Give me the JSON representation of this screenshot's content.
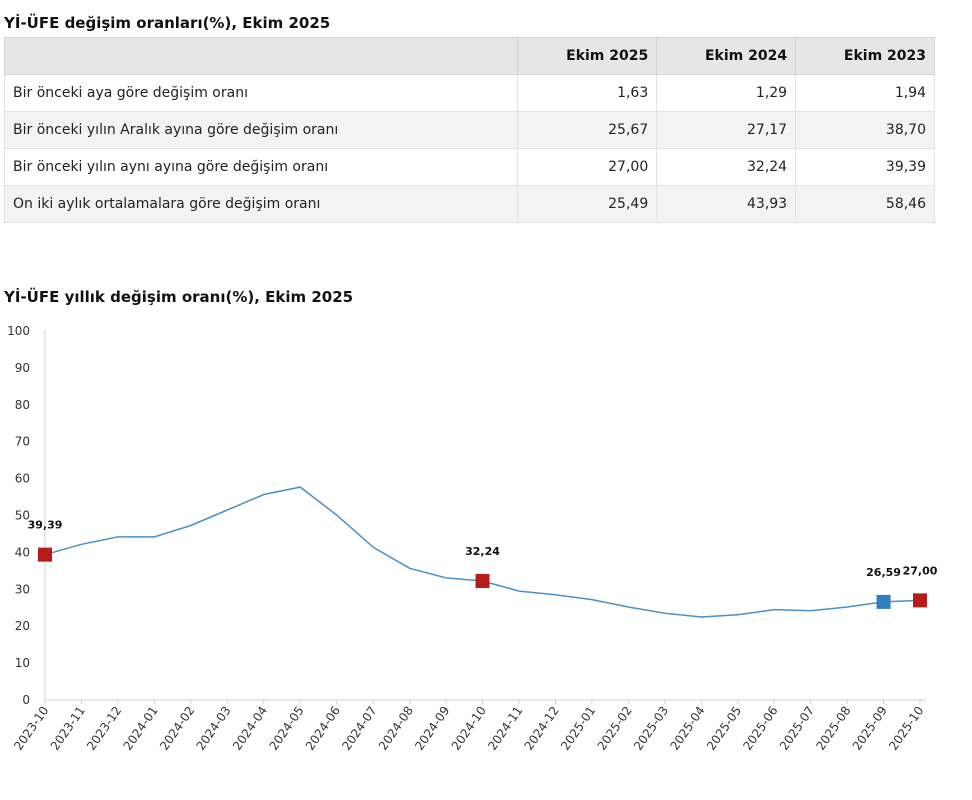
{
  "table": {
    "title": "Yİ-ÜFE değişim oranları(%), Ekim 2025",
    "columns": [
      "",
      "Ekim 2025",
      "Ekim 2024",
      "Ekim 2023"
    ],
    "rows": [
      {
        "label": "Bir önceki aya göre değişim oranı",
        "values": [
          "1,63",
          "1,29",
          "1,94"
        ]
      },
      {
        "label": "Bir önceki yılın Aralık ayına göre değişim oranı",
        "values": [
          "25,67",
          "27,17",
          "38,70"
        ]
      },
      {
        "label": "Bir önceki yılın aynı ayına göre değişim oranı",
        "values": [
          "27,00",
          "32,24",
          "39,39"
        ]
      },
      {
        "label": "On iki aylık ortalamalara göre değişim oranı",
        "values": [
          "25,49",
          "43,93",
          "58,46"
        ]
      }
    ]
  },
  "chart_data": {
    "type": "line",
    "title": "Yİ-ÜFE yıllık değişim oranı(%), Ekim 2025",
    "xlabel": "",
    "ylabel": "",
    "ylim": [
      0,
      100
    ],
    "yticks": [
      0,
      10,
      20,
      30,
      40,
      50,
      60,
      70,
      80,
      90,
      100
    ],
    "grid": false,
    "legend": "none",
    "line_color": "#4a90c8",
    "x": [
      "2023-10",
      "2023-11",
      "2023-12",
      "2024-01",
      "2024-02",
      "2024-03",
      "2024-04",
      "2024-05",
      "2024-06",
      "2024-07",
      "2024-08",
      "2024-09",
      "2024-10",
      "2024-11",
      "2024-12",
      "2025-01",
      "2025-02",
      "2025-03",
      "2025-04",
      "2025-05",
      "2025-06",
      "2025-07",
      "2025-08",
      "2025-09",
      "2025-10"
    ],
    "series": [
      {
        "values": [
          39.39,
          42.2,
          44.2,
          44.2,
          47.3,
          51.5,
          55.7,
          57.7,
          50.1,
          41.4,
          35.7,
          33.1,
          32.24,
          29.5,
          28.5,
          27.2,
          25.2,
          23.5,
          22.5,
          23.1,
          24.5,
          24.2,
          25.2,
          26.59,
          27.0
        ]
      }
    ],
    "highlights": [
      {
        "x": "2023-10",
        "value": 39.39,
        "label": "39,39",
        "color": "#b71c1c"
      },
      {
        "x": "2024-10",
        "value": 32.24,
        "label": "32,24",
        "color": "#b71c1c"
      },
      {
        "x": "2025-09",
        "value": 26.59,
        "label": "26,59",
        "color": "#2f7fbf"
      },
      {
        "x": "2025-10",
        "value": 27.0,
        "label": "27,00",
        "color": "#b71c1c"
      }
    ]
  }
}
